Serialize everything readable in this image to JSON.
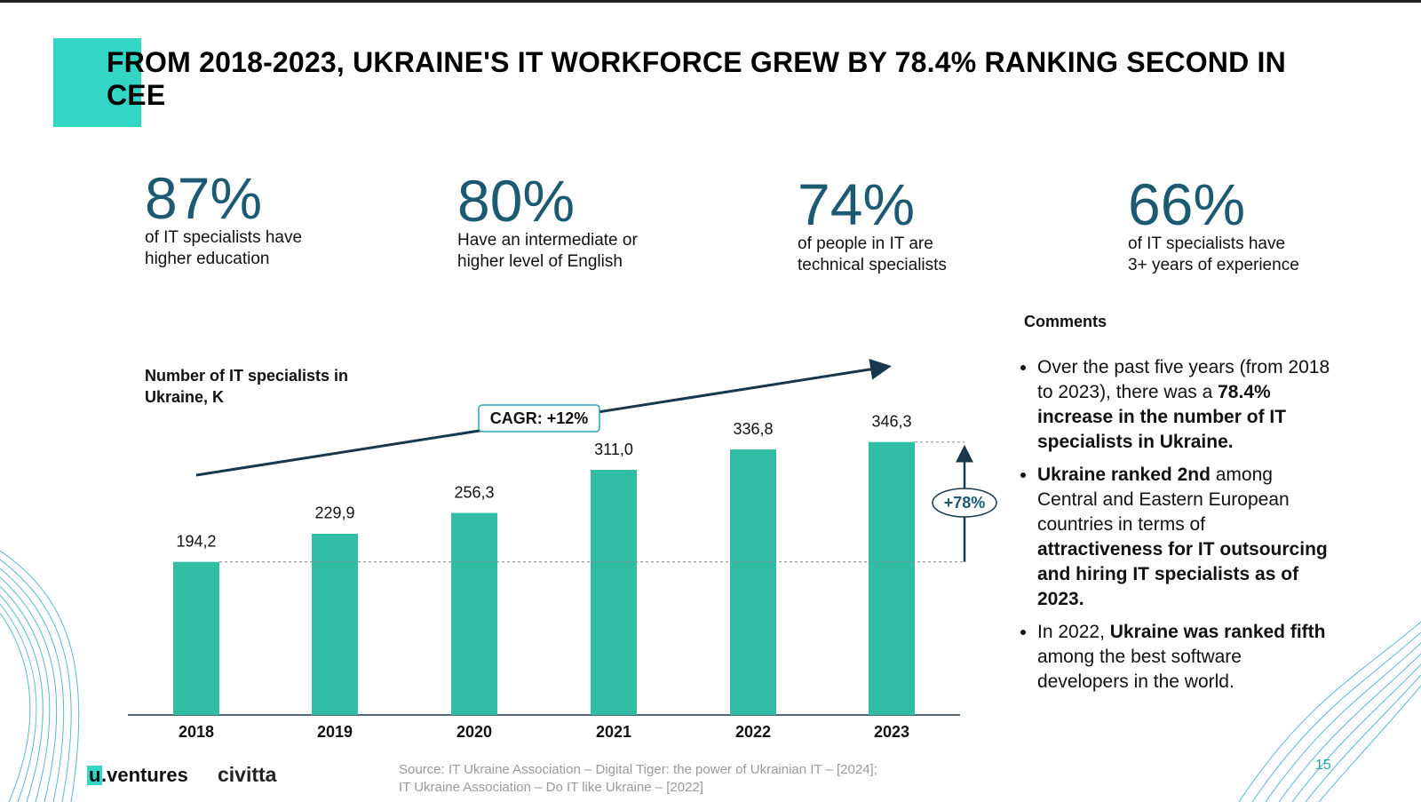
{
  "header": {
    "title": "FROM 2018-2023, UKRAINE'S IT WORKFORCE GREW BY 78.4% RANKING SECOND IN CEE"
  },
  "stats": [
    {
      "value": "87%",
      "lines": [
        "of IT specialists have",
        "higher education"
      ]
    },
    {
      "value": "80%",
      "lines": [
        "Have an intermediate or",
        "higher level of English"
      ]
    },
    {
      "value": "74%",
      "lines": [
        "of people in IT are",
        "technical specialists"
      ]
    },
    {
      "value": "66%",
      "lines": [
        "of IT specialists have",
        "3+ years of experience"
      ]
    }
  ],
  "chart_data": {
    "type": "bar",
    "title": "Number of IT specialists in Ukraine, K",
    "categories": [
      "2018",
      "2019",
      "2020",
      "2021",
      "2022",
      "2023"
    ],
    "values": [
      194.2,
      229.9,
      256.3,
      311.0,
      336.8,
      346.3
    ],
    "value_labels": [
      "194,2",
      "229,9",
      "256,3",
      "311,0",
      "336,8",
      "346,3"
    ],
    "color": "#31bca4",
    "annotations": {
      "cagr": "CAGR: +12%",
      "growth": "+78%"
    }
  },
  "comments": {
    "heading": "Comments",
    "items": [
      [
        {
          "text": "Over the past five years (from 2018 to 2023), there was a ",
          "bold": false
        },
        {
          "text": "78.4% increase in the number of IT specialists in Ukraine.",
          "bold": true
        }
      ],
      [
        {
          "text": "Ukraine ranked 2nd",
          "bold": true
        },
        {
          "text": " among Central and Eastern European countries in terms of ",
          "bold": false
        },
        {
          "text": "attractiveness for IT outsourcing and hiring IT specialists as of 2023.",
          "bold": true
        }
      ],
      [
        {
          "text": "In 2022, ",
          "bold": false
        },
        {
          "text": "Ukraine was ranked fifth",
          "bold": true
        },
        {
          "text": " among the best software developers in the world.",
          "bold": false
        }
      ]
    ]
  },
  "footer": {
    "logo_u": "u",
    "logo_ventures": ".ventures",
    "logo_civitta": "civitta",
    "source": [
      "Source: IT Ukraine Association – Digital Tiger: the power of Ukrainian IT – [2024];",
      "IT Ukraine Association – Do IT like Ukraine – [2022]"
    ],
    "page": "15"
  }
}
